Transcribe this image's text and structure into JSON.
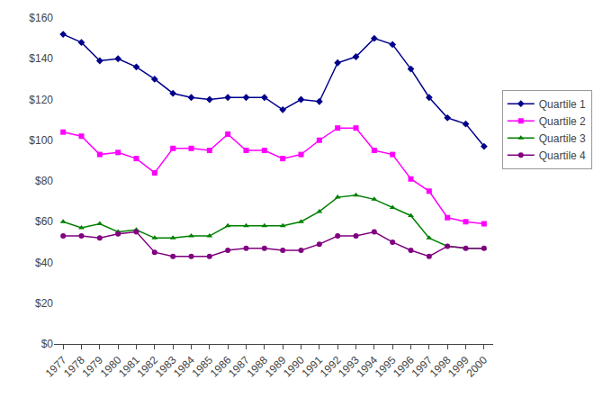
{
  "chart_data": {
    "type": "line",
    "x": [
      1977,
      1978,
      1979,
      1980,
      1981,
      1982,
      1983,
      1984,
      1985,
      1986,
      1987,
      1988,
      1989,
      1990,
      1991,
      1992,
      1993,
      1994,
      1995,
      1996,
      1997,
      1998,
      1999,
      2000
    ],
    "series": [
      {
        "name": "Quartile 1",
        "color": "#00008B",
        "marker": "diamond",
        "values": [
          152,
          148,
          139,
          140,
          136,
          130,
          123,
          121,
          120,
          121,
          121,
          121,
          115,
          120,
          119,
          138,
          141,
          150,
          147,
          135,
          121,
          111,
          108,
          97
        ]
      },
      {
        "name": "Quartile 2",
        "color": "#FF00FF",
        "marker": "square",
        "values": [
          104,
          102,
          93,
          94,
          91,
          84,
          96,
          96,
          95,
          103,
          95,
          95,
          91,
          93,
          100,
          106,
          106,
          95,
          93,
          81,
          75,
          62,
          60,
          59
        ]
      },
      {
        "name": "Quartile 3",
        "color": "#008000",
        "marker": "triangle-up",
        "values": [
          60,
          57,
          59,
          55,
          56,
          52,
          52,
          53,
          53,
          58,
          58,
          58,
          58,
          60,
          65,
          72,
          73,
          71,
          67,
          63,
          52,
          48,
          47,
          47
        ]
      },
      {
        "name": "Quartile 4",
        "color": "#800080",
        "marker": "circle",
        "values": [
          53,
          53,
          52,
          54,
          55,
          45,
          43,
          43,
          43,
          46,
          47,
          47,
          46,
          46,
          49,
          53,
          53,
          55,
          50,
          46,
          43,
          48,
          47,
          47
        ]
      }
    ],
    "xlim": [
      1976.5,
      2000.5
    ],
    "xticks": [
      1977,
      1978,
      1979,
      1980,
      1981,
      1982,
      1983,
      1984,
      1985,
      1986,
      1987,
      1988,
      1989,
      1990,
      1991,
      1992,
      1993,
      1994,
      1995,
      1996,
      1997,
      1998,
      1999,
      2000
    ],
    "ylim": [
      0,
      160
    ],
    "yticks": [
      {
        "value": 0,
        "label": "$0"
      },
      {
        "value": 20,
        "label": "$20"
      },
      {
        "value": 40,
        "label": "$40"
      },
      {
        "value": 60,
        "label": "$60"
      },
      {
        "value": 80,
        "label": "$80"
      },
      {
        "value": 100,
        "label": "$100"
      },
      {
        "value": 120,
        "label": "$120"
      },
      {
        "value": 140,
        "label": "$140"
      },
      {
        "value": 160,
        "label": "$160"
      }
    ],
    "grid": false,
    "legend": "right"
  }
}
